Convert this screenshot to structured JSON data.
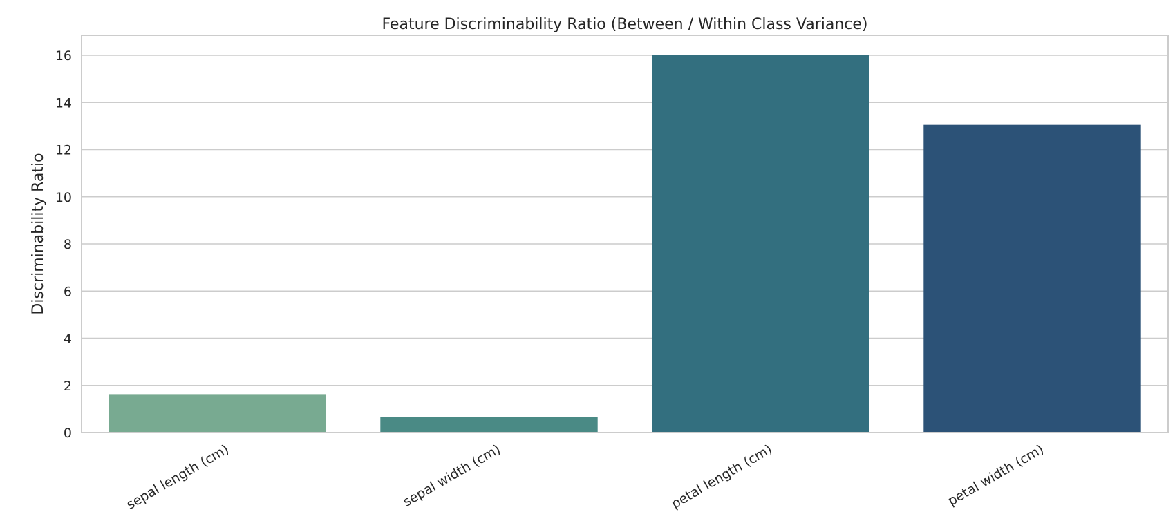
{
  "chart_data": {
    "type": "bar",
    "title": "Feature Discriminability Ratio (Between / Within Class Variance)",
    "xlabel": "",
    "ylabel": "Discriminability Ratio",
    "categories": [
      "sepal length (cm)",
      "sepal width (cm)",
      "petal length (cm)",
      "petal width (cm)"
    ],
    "values": [
      1.63,
      0.66,
      16.02,
      13.05
    ],
    "colors": [
      "#78aa91",
      "#4a8a85",
      "#336f7f",
      "#2c5277"
    ],
    "ylim": [
      0,
      16.85
    ],
    "yticks": [
      0,
      2,
      4,
      6,
      8,
      10,
      12,
      14,
      16
    ],
    "grid": true,
    "legend": "none"
  }
}
